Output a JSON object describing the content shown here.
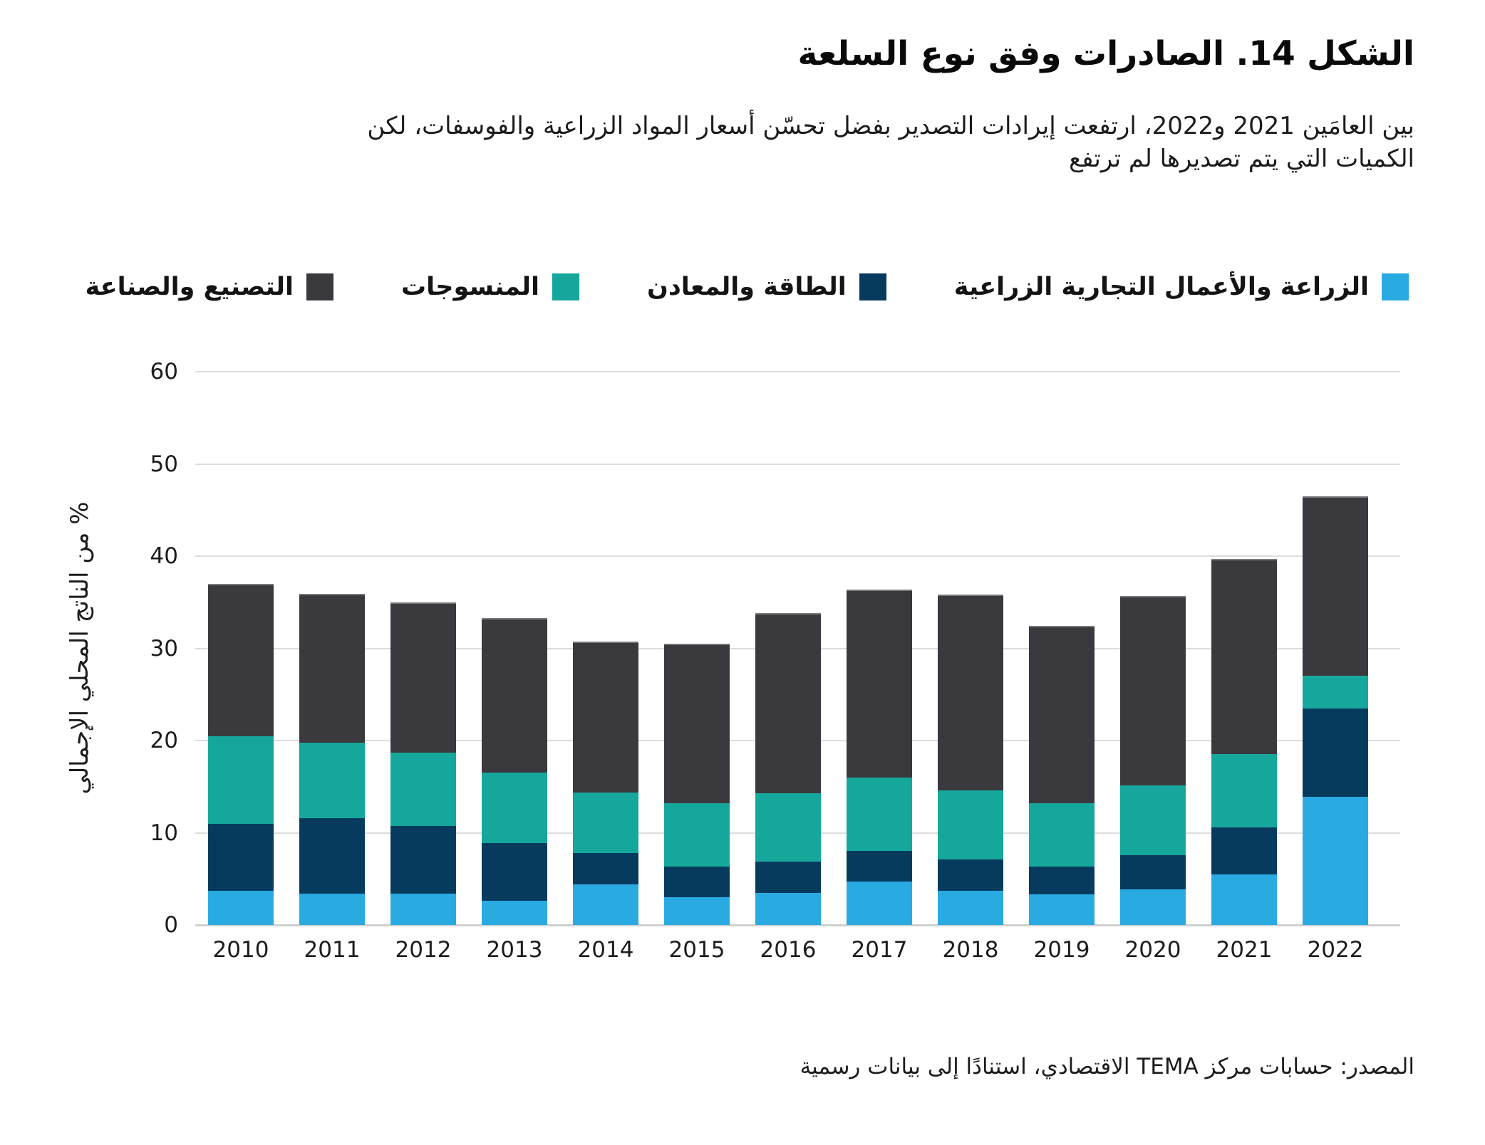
{
  "title": "الشكل 14. الصادرات وفق نوع السلعة",
  "subtitle": {
    "lines": [
      "بين العامَين 2021 و2022، ارتفعت إيرادات التصدير بفضل تحسّن أسعار المواد الزراعية والفوسفات، لكن",
      "الكميات التي يتم تصديرها لم ترتفع"
    ]
  },
  "source": "المصدر: حسابات مركز TEMA الاقتصادي، استنادًا إلى بيانات رسمية",
  "colors": {
    "agriculture": "#29ABE2",
    "energy_minerals": "#063B5E",
    "textiles": "#16A79C",
    "manufacturing": "#3A393D",
    "gridline": "#DCDCDC"
  },
  "chart_data": {
    "type": "bar",
    "stacked": true,
    "title": "الشكل 14. الصادرات وفق نوع السلعة",
    "xlabel": "",
    "ylabel": "% من الناتج المحلي الإجمالي",
    "ylim": [
      0,
      60
    ],
    "yticks": [
      0,
      10,
      20,
      30,
      40,
      50,
      60
    ],
    "grid": true,
    "legend_position": "top",
    "categories": [
      "2010",
      "2011",
      "2012",
      "2013",
      "2014",
      "2015",
      "2016",
      "2017",
      "2018",
      "2019",
      "2020",
      "2021",
      "2022"
    ],
    "series": [
      {
        "name": "الزراعة والأعمال التجارية الزراعية",
        "color": "#29ABE2",
        "values": [
          3.7,
          3.4,
          3.4,
          2.6,
          4.4,
          3.0,
          3.5,
          4.7,
          3.7,
          3.3,
          3.9,
          5.5,
          13.9
        ]
      },
      {
        "name": "الطاقة والمعادن",
        "color": "#063B5E",
        "values": [
          7.3,
          8.2,
          7.3,
          6.3,
          3.4,
          3.3,
          3.4,
          3.3,
          3.4,
          3.0,
          3.7,
          5.1,
          9.6
        ]
      },
      {
        "name": "المنسوجات",
        "color": "#16A79C",
        "values": [
          9.5,
          8.2,
          8.0,
          7.6,
          6.6,
          6.9,
          7.4,
          8.0,
          7.5,
          6.9,
          7.5,
          7.9,
          3.5
        ]
      },
      {
        "name": "التصنيع والصناعة",
        "color": "#3A393D",
        "values": [
          16.5,
          16.1,
          16.3,
          16.8,
          16.3,
          17.3,
          19.5,
          20.4,
          21.2,
          19.2,
          20.6,
          21.2,
          19.5
        ]
      }
    ]
  }
}
